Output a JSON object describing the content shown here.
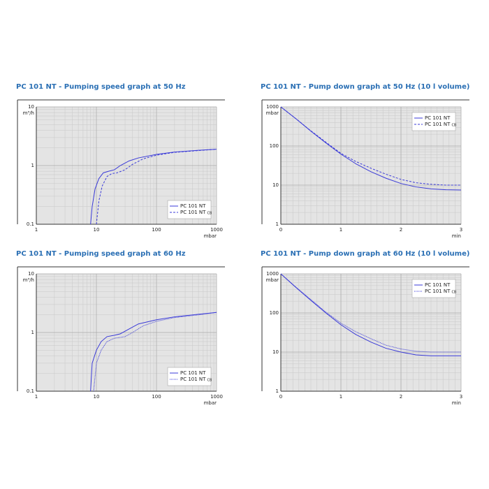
{
  "chart_data": [
    {
      "type": "line",
      "title": "PC 101 NT - Pumping speed graph at 50 Hz",
      "y_unit": "m³/h",
      "x_unit": "mbar",
      "xscale": "log",
      "yscale": "log",
      "xlim": [
        1,
        1000
      ],
      "ylim": [
        0.1,
        10
      ],
      "xticks": [
        1,
        10,
        100,
        1000
      ],
      "yticks": [
        0.1,
        1,
        10
      ],
      "grid": true,
      "legend": "lower right",
      "series": [
        {
          "name": "PC 101 NT",
          "color": "#3a3ad8",
          "dash": "none",
          "x": [
            8,
            8.5,
            9.5,
            11,
            13,
            16,
            20,
            25,
            35,
            50,
            100,
            200,
            500,
            1000
          ],
          "values": [
            0.1,
            0.2,
            0.4,
            0.6,
            0.75,
            0.8,
            0.85,
            1.0,
            1.2,
            1.35,
            1.55,
            1.7,
            1.82,
            1.9
          ]
        },
        {
          "name": "PC 101 NT",
          "subscript": "CB",
          "color": "#3a3ad8",
          "dash": "3 2",
          "x": [
            10,
            11,
            12.5,
            15,
            18,
            22,
            30,
            40,
            60,
            100,
            200,
            500,
            1000
          ],
          "values": [
            0.1,
            0.25,
            0.45,
            0.65,
            0.73,
            0.75,
            0.85,
            1.05,
            1.3,
            1.5,
            1.68,
            1.8,
            1.9
          ]
        }
      ]
    },
    {
      "type": "line",
      "title": "PC 101 NT - Pump down graph at 50 Hz (10 l volume)",
      "y_unit": "mbar",
      "x_unit": "min",
      "xscale": "linear",
      "yscale": "log",
      "xlim": [
        0,
        3
      ],
      "ylim": [
        1,
        1000
      ],
      "xticks": [
        0,
        1,
        2,
        3
      ],
      "yticks": [
        1,
        10,
        100,
        1000
      ],
      "grid": true,
      "legend": "upper right",
      "x": [
        0,
        0.25,
        0.5,
        0.75,
        1,
        1.25,
        1.5,
        1.75,
        2,
        2.25,
        2.5,
        2.75,
        3
      ],
      "series": [
        {
          "name": "PC 101 NT",
          "color": "#3a3ad8",
          "dash": "none",
          "values": [
            1000,
            500,
            240,
            120,
            62,
            35,
            22,
            15,
            11,
            9,
            8,
            7.6,
            7.5
          ]
        },
        {
          "name": "PC 101 NT",
          "subscript": "CB",
          "color": "#3a3ad8",
          "dash": "3 2",
          "values": [
            1000,
            500,
            245,
            125,
            65,
            40,
            27,
            19,
            14,
            11.5,
            10.5,
            10,
            10
          ]
        }
      ]
    },
    {
      "type": "line",
      "title": "PC 101 NT - Pumping speed graph at 60 Hz",
      "y_unit": "m³/h",
      "x_unit": "mbar",
      "xscale": "log",
      "yscale": "log",
      "xlim": [
        1,
        1000
      ],
      "ylim": [
        0.1,
        10
      ],
      "xticks": [
        1,
        10,
        100,
        1000
      ],
      "yticks": [
        0.1,
        1,
        10
      ],
      "grid": true,
      "legend": "lower right",
      "series": [
        {
          "name": "PC 101 NT",
          "color": "#3a3ad8",
          "dash": "none",
          "x": [
            8,
            8.5,
            10,
            12,
            15,
            20,
            25,
            35,
            50,
            100,
            200,
            500,
            1000
          ],
          "values": [
            0.1,
            0.3,
            0.5,
            0.7,
            0.85,
            0.9,
            0.95,
            1.15,
            1.4,
            1.65,
            1.85,
            2.05,
            2.2
          ]
        },
        {
          "name": "PC 101 NT",
          "subscript": "CB",
          "color": "#3a3ad8",
          "dash": "1 1",
          "x": [
            9,
            10,
            12,
            15,
            20,
            30,
            40,
            60,
            100,
            200,
            500,
            1000
          ],
          "values": [
            0.1,
            0.3,
            0.5,
            0.7,
            0.8,
            0.85,
            1.0,
            1.3,
            1.55,
            1.8,
            2.0,
            2.2
          ]
        }
      ]
    },
    {
      "type": "line",
      "title": "PC 101 NT - Pump down graph at 60 Hz (10 l volume)",
      "y_unit": "mbar",
      "x_unit": "min",
      "xscale": "linear",
      "yscale": "log",
      "xlim": [
        0,
        3
      ],
      "ylim": [
        1,
        1000
      ],
      "xticks": [
        0,
        1,
        2,
        3
      ],
      "yticks": [
        1,
        10,
        100,
        1000
      ],
      "grid": true,
      "legend": "upper right",
      "x": [
        0,
        0.25,
        0.5,
        0.75,
        1,
        1.25,
        1.5,
        1.75,
        2,
        2.25,
        2.5,
        2.75,
        3
      ],
      "series": [
        {
          "name": "PC 101 NT",
          "color": "#3a3ad8",
          "dash": "none",
          "values": [
            1000,
            450,
            210,
            100,
            50,
            28,
            18,
            12.5,
            10,
            8.5,
            8,
            8,
            8
          ]
        },
        {
          "name": "PC 101 NT",
          "subscript": "CB",
          "color": "#3a3ad8",
          "dash": "1 1",
          "values": [
            1000,
            460,
            220,
            105,
            55,
            33,
            22,
            15,
            12,
            10.5,
            10,
            10,
            10
          ]
        }
      ]
    }
  ]
}
